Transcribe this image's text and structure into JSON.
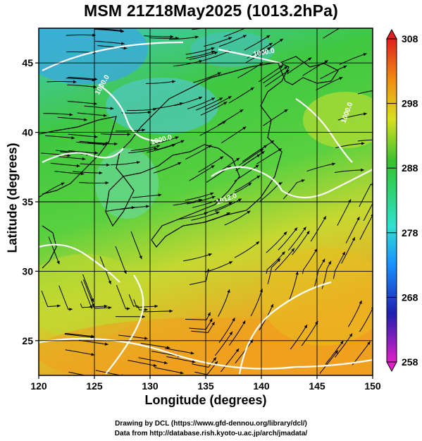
{
  "title": "MSM 21Z18May2025 (1013.2hPa)",
  "x_axis": {
    "label": "Longitude (degrees)",
    "range": [
      120,
      150
    ],
    "ticks": [
      "120",
      "125",
      "130",
      "135",
      "140",
      "145",
      "150"
    ]
  },
  "y_axis": {
    "label": "Latitude  (degrees)",
    "range": [
      22.5,
      47.5
    ],
    "ticks": [
      "25",
      "30",
      "35",
      "40",
      "45"
    ]
  },
  "colorbar": {
    "range": [
      258,
      308
    ],
    "ticks": [
      "258",
      "268",
      "278",
      "288",
      "298",
      "308"
    ],
    "colors": [
      "#e020c8",
      "#1020c0",
      "#1890ff",
      "#30e0e0",
      "#30d070",
      "#40c030",
      "#d0e020",
      "#f0a010",
      "#e85020",
      "#e02020"
    ]
  },
  "isobar_labels": [
    "1012.0",
    "1000.0",
    "1000.0",
    "1000.0",
    "1000.0"
  ],
  "footer": {
    "line1": "Drawing by DCL (https://www.gfd-dennou.org/library/dcl/)",
    "line2": "Data from http://database.rish.kyoto-u.ac.jp/arch/jmadata/"
  },
  "chart_data": {
    "type": "heatmap",
    "title": "MSM 21Z18May2025 (1013.2hPa)",
    "xlabel": "Longitude (degrees)",
    "ylabel": "Latitude  (degrees)",
    "xlim": [
      120,
      150
    ],
    "ylim": [
      22.5,
      47.5
    ],
    "colorbar_range": [
      258,
      308
    ],
    "colorbar_ticks": [
      258,
      268,
      278,
      288,
      298,
      308
    ],
    "grid": true,
    "overlays": [
      "streamlines (wind)",
      "isobars (white)",
      "coastlines"
    ]
  }
}
